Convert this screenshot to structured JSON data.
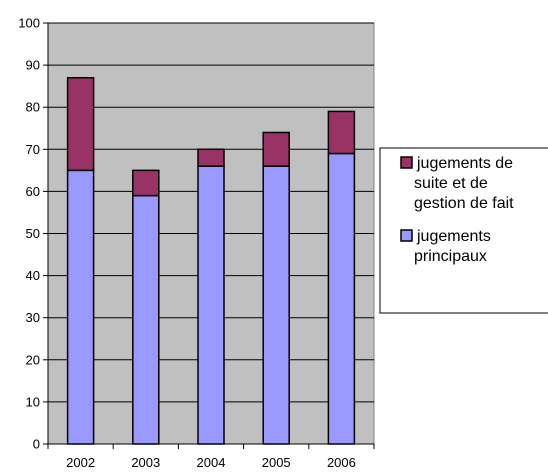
{
  "chart_data": {
    "type": "bar",
    "stacked": true,
    "categories": [
      "2002",
      "2003",
      "2004",
      "2005",
      "2006"
    ],
    "series": [
      {
        "name": "jugements principaux",
        "values": [
          65,
          59,
          66,
          66,
          69
        ],
        "color": "#9999ff"
      },
      {
        "name": "jugements de suite et de gestion de fait",
        "values": [
          22,
          6,
          4,
          8,
          10
        ],
        "color": "#993366"
      }
    ],
    "title": "",
    "xlabel": "",
    "ylabel": "",
    "ylim": [
      0,
      100
    ],
    "yticks": [
      0,
      10,
      20,
      30,
      40,
      50,
      60,
      70,
      80,
      90,
      100
    ],
    "grid": true,
    "plot_background": "#c0c0c0",
    "legend_position": "right",
    "legend": [
      {
        "lines": [
          "jugements de",
          "suite et de",
          "gestion de fait"
        ],
        "color": "#993366"
      },
      {
        "lines": [
          "jugements",
          "principaux"
        ],
        "color": "#9999ff"
      }
    ]
  }
}
